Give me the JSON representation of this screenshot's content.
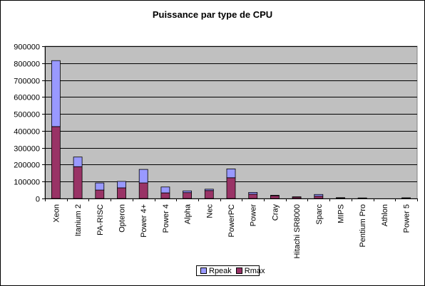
{
  "chart_data": {
    "type": "bar",
    "stacked": true,
    "title": "Puissance par type de CPU",
    "xlabel": "",
    "ylabel": "",
    "ylim": [
      0,
      900000
    ],
    "yticks": [
      "0",
      "100000",
      "200000",
      "300000",
      "400000",
      "500000",
      "600000",
      "700000",
      "800000",
      "900000"
    ],
    "grid": true,
    "legend_position": "bottom",
    "categories": [
      "Xeon",
      "Itanium 2",
      "PA-RISC",
      "Opteron",
      "Power 4+",
      "Power 4",
      "Alpha",
      "Nec",
      "PowerPC",
      "Power",
      "Cray",
      "Hitachi SR8000",
      "Sparc",
      "MIPS",
      "Pentium Pro",
      "Athlon",
      "Power 5"
    ],
    "series": [
      {
        "name": "Rmax",
        "color": "#993366",
        "values": [
          425000,
          188000,
          50000,
          63000,
          92000,
          33000,
          35000,
          47000,
          123000,
          26000,
          16000,
          8000,
          14000,
          4000,
          2500,
          0,
          2500
        ]
      },
      {
        "name": "Rpeak",
        "color": "#9999FF",
        "values": [
          390000,
          57000,
          42000,
          38000,
          80000,
          35000,
          10000,
          8000,
          52000,
          10000,
          3000,
          2000,
          10000,
          1000,
          1000,
          0,
          1500
        ]
      }
    ],
    "legend_order": [
      "Rpeak",
      "Rmax"
    ],
    "plot_background": "#C0C0C0"
  }
}
